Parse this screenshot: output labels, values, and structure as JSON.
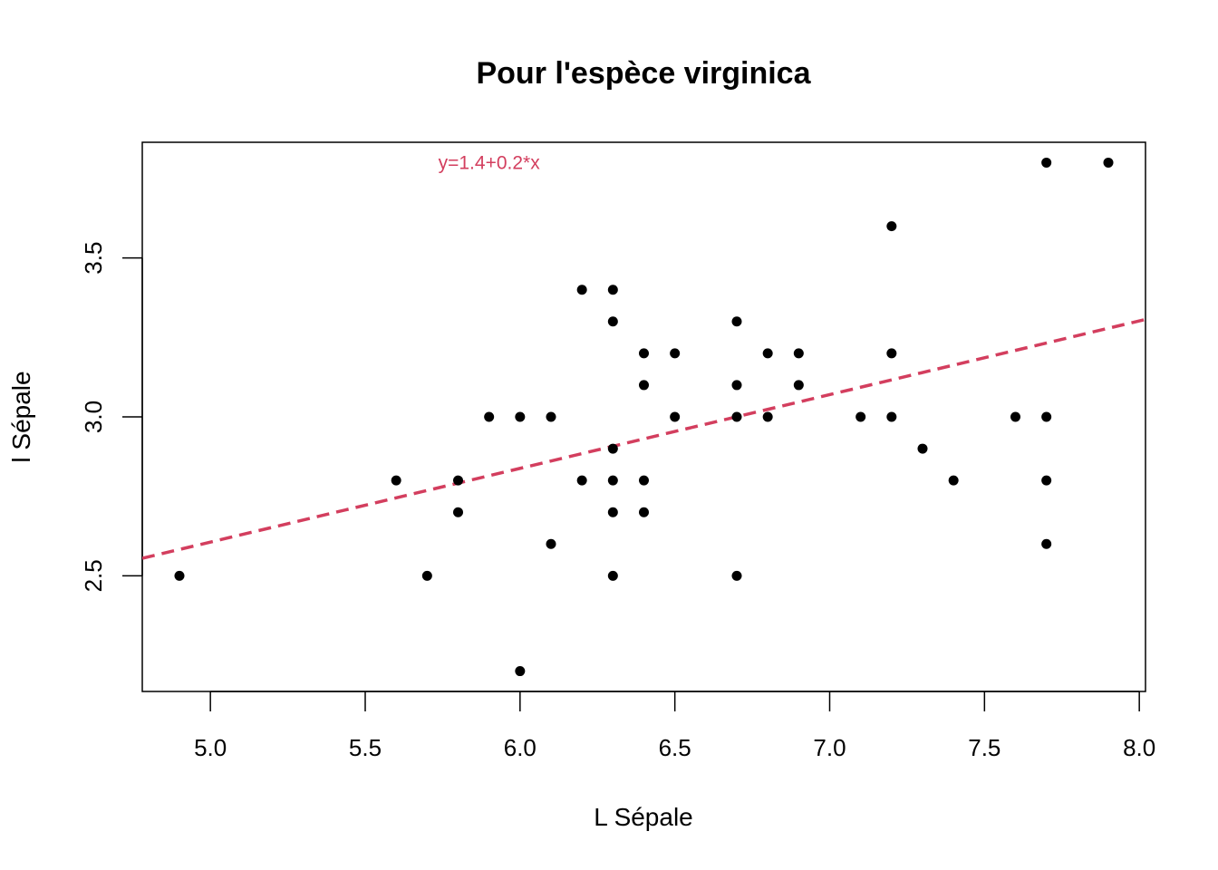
{
  "chart_data": {
    "type": "scatter",
    "title": "Pour l'espèce virginica",
    "xlabel": "L Sépale",
    "ylabel": "l Sépale",
    "xlim": [
      4.78,
      8.02
    ],
    "ylim": [
      2.136,
      3.864
    ],
    "xticks": [
      "5.0",
      "5.5",
      "6.0",
      "6.5",
      "7.0",
      "7.5",
      "8.0"
    ],
    "yticks": [
      "2.5",
      "3.0",
      "3.5"
    ],
    "grid": false,
    "legend": "none",
    "series": [
      {
        "points": [
          [
            4.9,
            2.5
          ],
          [
            5.6,
            2.8
          ],
          [
            5.7,
            2.5
          ],
          [
            5.8,
            2.8
          ],
          [
            5.8,
            2.7
          ],
          [
            5.9,
            3.0
          ],
          [
            6.0,
            3.0
          ],
          [
            6.0,
            2.2
          ],
          [
            6.1,
            3.0
          ],
          [
            6.1,
            2.6
          ],
          [
            6.2,
            3.4
          ],
          [
            6.2,
            2.8
          ],
          [
            6.3,
            3.4
          ],
          [
            6.3,
            3.3
          ],
          [
            6.3,
            2.9
          ],
          [
            6.3,
            2.8
          ],
          [
            6.3,
            2.7
          ],
          [
            6.3,
            2.5
          ],
          [
            6.4,
            3.2
          ],
          [
            6.4,
            3.1
          ],
          [
            6.4,
            2.8
          ],
          [
            6.4,
            2.7
          ],
          [
            6.5,
            3.2
          ],
          [
            6.5,
            3.0
          ],
          [
            6.7,
            3.3
          ],
          [
            6.7,
            3.1
          ],
          [
            6.7,
            3.0
          ],
          [
            6.7,
            2.5
          ],
          [
            6.8,
            3.2
          ],
          [
            6.8,
            3.0
          ],
          [
            6.9,
            3.2
          ],
          [
            6.9,
            3.1
          ],
          [
            7.1,
            3.0
          ],
          [
            7.2,
            3.6
          ],
          [
            7.2,
            3.2
          ],
          [
            7.2,
            3.0
          ],
          [
            7.3,
            2.9
          ],
          [
            7.4,
            2.8
          ],
          [
            7.6,
            3.0
          ],
          [
            7.7,
            3.8
          ],
          [
            7.7,
            3.0
          ],
          [
            7.7,
            2.8
          ],
          [
            7.7,
            2.6
          ],
          [
            7.9,
            3.8
          ]
        ],
        "color": "#000000"
      }
    ],
    "regression_line": {
      "intercept": 1.446,
      "slope": 0.232,
      "color": "#D33E5E",
      "style": "dashed"
    },
    "annotation": {
      "text": "y=1.4+0.2*x",
      "x": 5.9,
      "y": 3.8,
      "color": "#D33E5E"
    }
  }
}
